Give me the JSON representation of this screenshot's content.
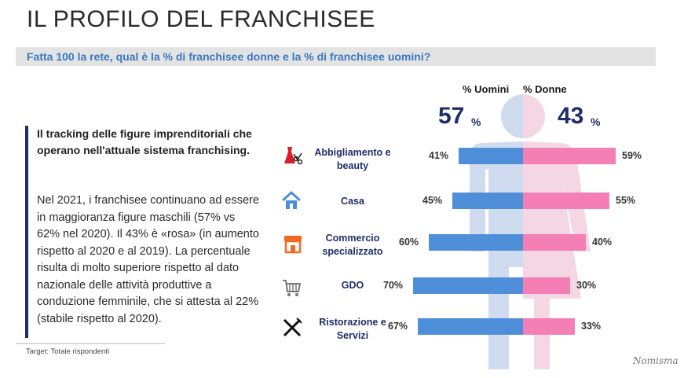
{
  "title": "IL PROFILO DEL FRANCHISEE",
  "question": "Fatta 100 la rete, qual è la % di franchisee donne e la % di franchisee uomini?",
  "lead": "Il tracking delle figure imprenditoriali che operano nell'attuale sistema franchising.",
  "body": "Nel 2021, i franchisee continuano ad essere in maggioranza figure maschili (57% vs 62% nel 2020). Il 43% è «rosa» (in aumento rispetto al 2020 e al 2019). La percentuale risulta di molto superiore rispetto al dato nazionale delle attività produttive a conduzione femminile, che si attesta al 22% (stabile rispetto al 2020).",
  "target": "Target: Totale rispondenti",
  "logo": "Nomisma",
  "colors": {
    "men": "#4f8fd9",
    "women": "#f47fb4",
    "navy": "#1f2d6b",
    "silhouette_men": "#cfdcf0",
    "silhouette_women": "#f4d6e4"
  },
  "chart_data": {
    "type": "bar",
    "orientation": "diverging-horizontal",
    "header_men": "% Uomini",
    "header_women": "% Donne",
    "total_men": {
      "value": "57",
      "unit": "%"
    },
    "total_women": {
      "value": "43",
      "unit": "%"
    },
    "categories": [
      {
        "label": "Abbigliamento e beauty",
        "icon": "dress-scissors-icon"
      },
      {
        "label": "Casa",
        "icon": "house-icon"
      },
      {
        "label": "Commercio specializzato",
        "icon": "shop-icon"
      },
      {
        "label": "GDO",
        "icon": "shopping-cart-icon"
      },
      {
        "label": "Ristorazione e Servizi",
        "icon": "fork-knife-icon"
      }
    ],
    "series": [
      {
        "name": "% Uomini",
        "values": [
          41,
          45,
          60,
          70,
          67
        ]
      },
      {
        "name": "% Donne",
        "values": [
          59,
          55,
          40,
          30,
          33
        ]
      }
    ],
    "value_labels_men": [
      "41%",
      "45%",
      "60%",
      "70%",
      "67%"
    ],
    "value_labels_women": [
      "59%",
      "55%",
      "40%",
      "30%",
      "33%"
    ],
    "xlim": [
      0,
      100
    ]
  }
}
